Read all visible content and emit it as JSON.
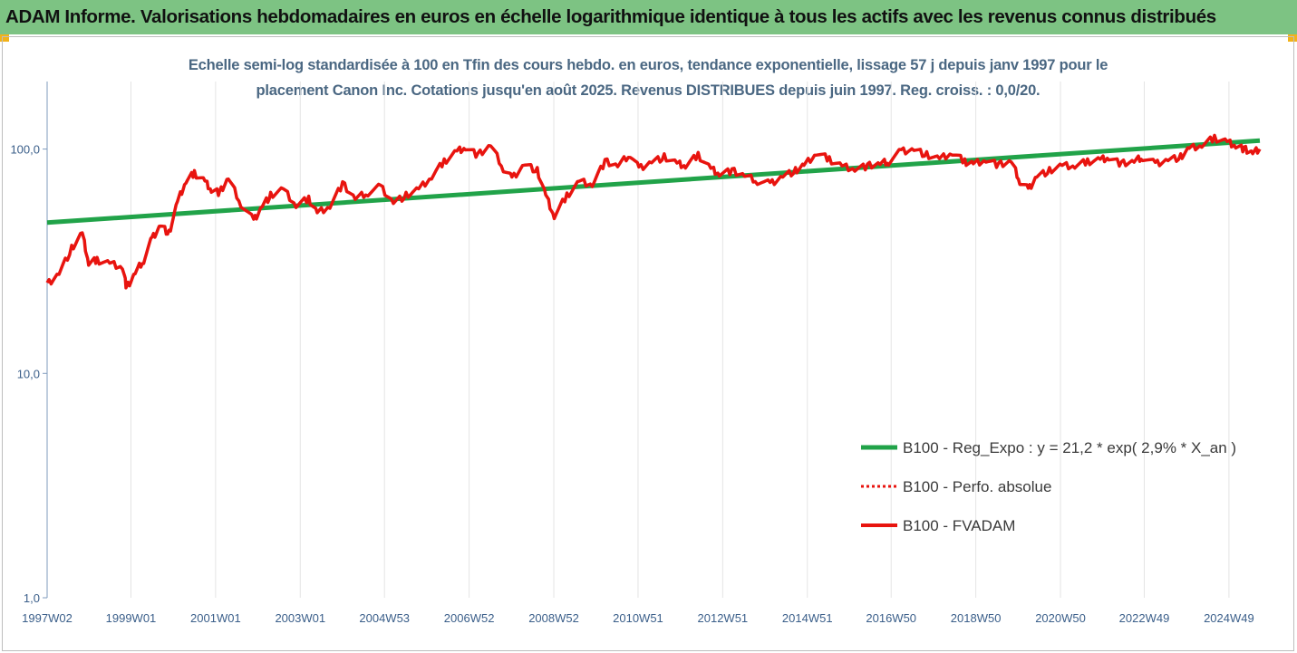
{
  "header": {
    "title": "ADAM Informe. Valorisations hebdomadaires en euros en échelle logarithmique identique à tous les actifs avec les revenus connus distribués"
  },
  "colors": {
    "header_bg": "#7dc383",
    "trend": "#21a349",
    "series": "#e8140f",
    "axis_text": "#3b5f8a"
  },
  "chart_data": {
    "type": "line",
    "title_line1": "Echelle semi-log standardisée à 100 en Tfin des cours hebdo. en euros, tendance exponentielle, lissage 57 j depuis janv 1997 pour le",
    "title_line2": "placement Canon Inc.  Cotations jusqu'en août 2025. Revenus DISTRIBUES depuis juin 1997. Reg. croiss. : 0,0/20.",
    "y_scale": "log",
    "ylim": [
      1,
      200
    ],
    "y_ticks": [
      {
        "value": 100,
        "label": "100,0"
      },
      {
        "value": 10,
        "label": "10,0"
      },
      {
        "value": 1,
        "label": "1,0"
      }
    ],
    "xlim": [
      1997.02,
      2025.67
    ],
    "x_ticks": [
      {
        "value": 1997.02,
        "label": "1997W02"
      },
      {
        "value": 1999.0,
        "label": "1999W01"
      },
      {
        "value": 2001.0,
        "label": "2001W01"
      },
      {
        "value": 2003.0,
        "label": "2003W01"
      },
      {
        "value": 2004.99,
        "label": "2004W53"
      },
      {
        "value": 2006.99,
        "label": "2006W52"
      },
      {
        "value": 2008.99,
        "label": "2008W52"
      },
      {
        "value": 2010.98,
        "label": "2010W51"
      },
      {
        "value": 2012.98,
        "label": "2012W51"
      },
      {
        "value": 2014.98,
        "label": "2014W51"
      },
      {
        "value": 2016.96,
        "label": "2016W50"
      },
      {
        "value": 2018.96,
        "label": "2018W50"
      },
      {
        "value": 2020.96,
        "label": "2020W50"
      },
      {
        "value": 2022.94,
        "label": "2022W49"
      },
      {
        "value": 2024.94,
        "label": "2024W49"
      }
    ],
    "grid": "vertical",
    "legend_position": "right",
    "series": [
      {
        "name": "B100 - Reg_Expo : y = 21,2 * exp( 2,9% *  X_an )",
        "style": "solid-thick",
        "color": "#21a349",
        "x": [
          1997.02,
          2025.67
        ],
        "y": [
          47,
          109
        ]
      },
      {
        "name": "B100 - Perfo. absolue",
        "style": "dotted",
        "color": "#e8140f",
        "x": [],
        "y": []
      },
      {
        "name": "B100 - FVADAM",
        "style": "solid",
        "color": "#e8140f",
        "x": [
          1997.02,
          1997.3,
          1997.6,
          1997.85,
          1998.0,
          1998.2,
          1998.5,
          1998.8,
          1998.9,
          1999.1,
          1999.3,
          1999.5,
          1999.7,
          1999.9,
          2000.1,
          2000.3,
          2000.5,
          2000.75,
          2000.9,
          2001.1,
          2001.3,
          2001.6,
          2001.9,
          2002.1,
          2002.3,
          2002.6,
          2002.9,
          2003.2,
          2003.4,
          2003.7,
          2004.0,
          2004.3,
          2004.6,
          2004.9,
          2005.2,
          2005.5,
          2005.8,
          2006.1,
          2006.4,
          2006.7,
          2006.9,
          2007.2,
          2007.5,
          2007.8,
          2008.0,
          2008.3,
          2008.6,
          2008.8,
          2009.0,
          2009.3,
          2009.6,
          2009.9,
          2010.2,
          2010.5,
          2010.8,
          2011.0,
          2011.3,
          2011.6,
          2011.9,
          2012.1,
          2012.4,
          2012.7,
          2012.9,
          2013.2,
          2013.5,
          2013.8,
          2014.1,
          2014.4,
          2014.7,
          2014.9,
          2015.2,
          2015.5,
          2015.8,
          2016.1,
          2016.4,
          2016.7,
          2016.9,
          2017.2,
          2017.5,
          2017.8,
          2018.1,
          2018.4,
          2018.7,
          2018.9,
          2019.2,
          2019.5,
          2019.8,
          2020.0,
          2020.2,
          2020.4,
          2020.7,
          2021.0,
          2021.3,
          2021.6,
          2021.9,
          2022.1,
          2022.4,
          2022.7,
          2022.9,
          2023.2,
          2023.5,
          2023.8,
          2024.0,
          2024.3,
          2024.6,
          2024.9,
          2025.1,
          2025.3,
          2025.5,
          2025.67
        ],
        "y": [
          25,
          28,
          36,
          42,
          31,
          32,
          31,
          30,
          24,
          28,
          32,
          40,
          46,
          42,
          58,
          72,
          78,
          72,
          66,
          64,
          74,
          57,
          48,
          56,
          62,
          66,
          56,
          60,
          52,
          56,
          70,
          60,
          64,
          68,
          58,
          62,
          66,
          75,
          88,
          98,
          102,
          94,
          104,
          82,
          74,
          86,
          80,
          62,
          50,
          62,
          72,
          70,
          88,
          84,
          95,
          82,
          88,
          92,
          86,
          84,
          94,
          82,
          78,
          80,
          76,
          72,
          70,
          76,
          80,
          84,
          96,
          90,
          84,
          82,
          84,
          86,
          88,
          98,
          100,
          94,
          90,
          96,
          88,
          86,
          90,
          85,
          88,
          72,
          66,
          76,
          80,
          84,
          84,
          88,
          90,
          92,
          86,
          88,
          92,
          86,
          90,
          92,
          100,
          104,
          112,
          108,
          104,
          100,
          96,
          100
        ]
      }
    ]
  }
}
